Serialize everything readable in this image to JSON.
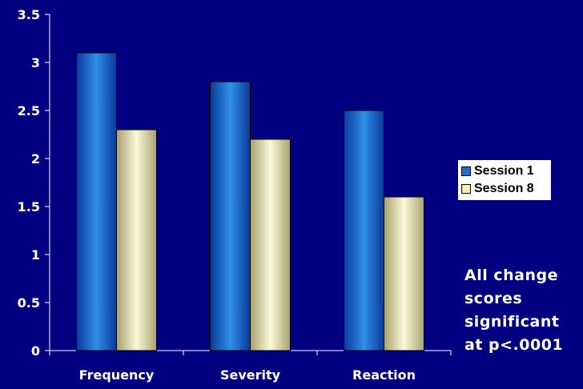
{
  "chart_data": {
    "type": "bar",
    "categories": [
      "Frequency",
      "Severity",
      "Reaction"
    ],
    "series": [
      {
        "name": "Session 1",
        "values": [
          3.1,
          2.8,
          2.5
        ],
        "color": "#1565c0"
      },
      {
        "name": "Session 8",
        "values": [
          2.3,
          2.2,
          1.6
        ],
        "color": "#f2f0b0"
      }
    ],
    "ylim": [
      0,
      3.5
    ],
    "yticks": [
      "0",
      "0.5",
      "1",
      "1.5",
      "2",
      "2.5",
      "3",
      "3.5"
    ],
    "grid": false,
    "legend_position": "right",
    "annotation": "All change scores significant at p<.0001"
  },
  "colors": {
    "background": "#000080",
    "axis": "#ffffff"
  }
}
